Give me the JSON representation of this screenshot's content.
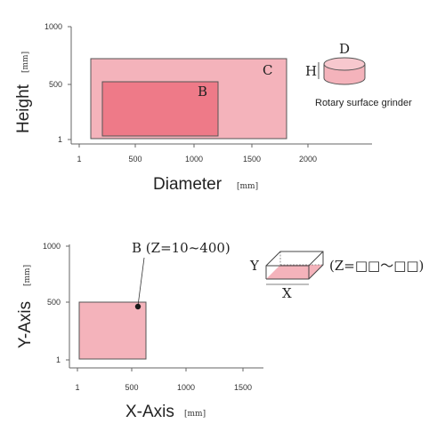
{
  "colors": {
    "region_light": "#f4b3bb",
    "region_dark": "#ee7a88",
    "outline": "#555555",
    "axis": "#666666"
  },
  "top_chart": {
    "ylabel": "Height",
    "yunit": "[mm]",
    "xlabel": "Diameter",
    "xunit": "[mm]",
    "y_ticks": [
      "1000",
      "500",
      "1"
    ],
    "x_ticks": [
      "1",
      "500",
      "1000",
      "1500",
      "2000"
    ],
    "region_c_label": "C",
    "region_b_label": "B",
    "icon_h_label": "H",
    "icon_d_label": "D",
    "icon_caption": "Rotary surface grinder",
    "icon_name": "rotary-table-icon"
  },
  "bottom_chart": {
    "ylabel": "Y-Axis",
    "yunit": "[mm]",
    "xlabel": "X-Axis",
    "xunit": "[mm]",
    "y_ticks": [
      "1000",
      "500",
      "1"
    ],
    "x_ticks": [
      "1",
      "500",
      "1000",
      "1500"
    ],
    "point_label": "B (Z=10~400)",
    "icon_y_label": "Y",
    "icon_x_label": "X",
    "icon_z_label": "(Z=□□〜□□)",
    "icon_name": "rectangular-table-icon"
  },
  "chart_data": [
    {
      "type": "area",
      "xlabel": "Diameter",
      "ylabel": "Height",
      "xlim": [
        1,
        2200
      ],
      "ylim": [
        1,
        1000
      ],
      "regions": [
        {
          "name": "C",
          "x": [
            100,
            1800
          ],
          "y": [
            1,
            700
          ]
        },
        {
          "name": "B",
          "x": [
            200,
            1200
          ],
          "y": [
            1,
            500
          ]
        }
      ]
    },
    {
      "type": "scatter",
      "xlabel": "X-Axis",
      "ylabel": "Y-Axis",
      "xlim": [
        1,
        1700
      ],
      "ylim": [
        1,
        1000
      ],
      "regions": [
        {
          "name": "",
          "x": [
            1,
            600
          ],
          "y": [
            1,
            500
          ]
        }
      ],
      "points": [
        {
          "name": "B (Z=10~400)",
          "x": 560,
          "y": 470
        }
      ]
    }
  ]
}
